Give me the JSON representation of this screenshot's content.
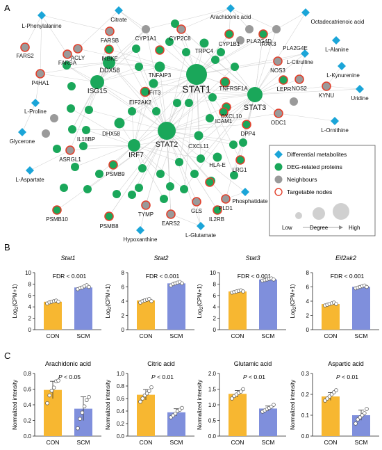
{
  "panels": {
    "a": {
      "letter": "A"
    },
    "b": {
      "letter": "B"
    },
    "c": {
      "letter": "C"
    }
  },
  "colors": {
    "metabolite": "#1ba5d8",
    "protein": "#1aa75a",
    "neighbour": "#9a9a9a",
    "target_ring": "#e2402c",
    "edge": "#d4d4d4",
    "bar_con": "#f7b731",
    "bar_scm": "#7f8fdc",
    "degree_bubble": "#d0d0d0"
  },
  "network": {
    "legend": {
      "items": [
        {
          "label": "Differential metabolites",
          "shape": "diamond"
        },
        {
          "label": "DEG-related proteins",
          "shape": "circle-green"
        },
        {
          "label": "Neighbours",
          "shape": "circle-gray"
        },
        {
          "label": "Targetable nodes",
          "shape": "ring"
        }
      ],
      "degree_low": "Low",
      "degree_label": "Degree",
      "degree_high": "High"
    },
    "nodes": [
      {
        "label": "STAT1",
        "type": "protein",
        "degree": 10
      },
      {
        "label": "STAT2",
        "type": "protein",
        "degree": 9
      },
      {
        "label": "STAT3",
        "type": "protein",
        "degree": 8
      },
      {
        "label": "ISG15",
        "type": "protein",
        "degree": 7
      },
      {
        "label": "IRF7",
        "type": "protein",
        "degree": 6
      },
      {
        "label": "DDX58",
        "type": "protein",
        "degree": 6
      },
      {
        "label": "DHX58",
        "type": "protein",
        "degree": 5
      },
      {
        "label": "TNFAIP3",
        "type": "protein",
        "degree": 5
      },
      {
        "label": "IFIT3",
        "type": "protein",
        "degree": 4
      },
      {
        "label": "TRPC4",
        "type": "protein",
        "degree": 4
      },
      {
        "label": "CXCL11",
        "type": "protein",
        "degree": 4
      },
      {
        "label": "HLA-E",
        "type": "protein",
        "degree": 4
      },
      {
        "label": "IL18BP",
        "type": "protein",
        "degree": 3
      },
      {
        "label": "TNFRSF1A",
        "type": "protein",
        "degree": 4,
        "target": true
      },
      {
        "label": "EIF2AK2",
        "type": "protein",
        "degree": 4,
        "target": true
      },
      {
        "label": "CXCL10",
        "type": "protein",
        "degree": 3,
        "target": true
      },
      {
        "label": "ICAM1",
        "type": "protein",
        "degree": 3,
        "target": true
      },
      {
        "label": "DPP4",
        "type": "protein",
        "degree": 3,
        "target": true
      },
      {
        "label": "IKBKE",
        "type": "protein",
        "degree": 3,
        "target": true
      },
      {
        "label": "CYP1B1",
        "type": "protein",
        "degree": 3,
        "target": true
      },
      {
        "label": "IRAK3",
        "type": "protein",
        "degree": 3,
        "target": true
      },
      {
        "label": "LEPR",
        "type": "protein",
        "degree": 3,
        "target": true
      },
      {
        "label": "LRG1",
        "type": "protein",
        "degree": 3,
        "target": true
      },
      {
        "label": "IL2RB",
        "type": "protein",
        "degree": 3,
        "target": true
      },
      {
        "label": "PSMB9",
        "type": "protein",
        "degree": 3,
        "target": true
      },
      {
        "label": "PSMB8",
        "type": "protein",
        "degree": 3,
        "target": true
      },
      {
        "label": "PSMB10",
        "type": "protein",
        "degree": 3,
        "target": true
      },
      {
        "label": "CYP1A1",
        "type": "neighbour",
        "degree": 2
      },
      {
        "label": "CYP2C8",
        "type": "neighbour",
        "degree": 2,
        "target": true
      },
      {
        "label": "PLA2G4D",
        "type": "neighbour",
        "degree": 2
      },
      {
        "label": "PLA2G4E",
        "type": "neighbour",
        "degree": 2
      },
      {
        "label": "FARSB",
        "type": "neighbour",
        "degree": 2,
        "target": true
      },
      {
        "label": "ACLY",
        "type": "neighbour",
        "degree": 2,
        "target": true
      },
      {
        "label": "FARS2",
        "type": "neighbour",
        "degree": 2,
        "target": true
      },
      {
        "label": "FARSA",
        "type": "neighbour",
        "degree": 2,
        "target": true
      },
      {
        "label": "P4HA1",
        "type": "neighbour",
        "degree": 2,
        "target": true
      },
      {
        "label": "NOS3",
        "type": "neighbour",
        "degree": 2,
        "target": true
      },
      {
        "label": "NOS2",
        "type": "neighbour",
        "degree": 2,
        "target": true
      },
      {
        "label": "KYNU",
        "type": "neighbour",
        "degree": 2,
        "target": true
      },
      {
        "label": "ODC1",
        "type": "neighbour",
        "degree": 2,
        "target": true
      },
      {
        "label": "ASRGL1",
        "type": "neighbour",
        "degree": 2,
        "target": true
      },
      {
        "label": "TYMP",
        "type": "neighbour",
        "degree": 2,
        "target": true
      },
      {
        "label": "GLS",
        "type": "neighbour",
        "degree": 2,
        "target": true
      },
      {
        "label": "EARS2",
        "type": "neighbour",
        "degree": 2,
        "target": true
      },
      {
        "label": "PLD1",
        "type": "neighbour",
        "degree": 2,
        "target": true
      },
      {
        "label": "L-Phenylalanine",
        "type": "metabolite"
      },
      {
        "label": "Citrate",
        "type": "metabolite"
      },
      {
        "label": "Arachidonic acid",
        "type": "metabolite"
      },
      {
        "label": "Octadecatrienoic acid",
        "type": "metabolite"
      },
      {
        "label": "L-Alanine",
        "type": "metabolite"
      },
      {
        "label": "L-Citrulline",
        "type": "metabolite"
      },
      {
        "label": "L-Kynurenine",
        "type": "metabolite"
      },
      {
        "label": "Uridine",
        "type": "metabolite"
      },
      {
        "label": "L-Ornithine",
        "type": "metabolite"
      },
      {
        "label": "L-Proline",
        "type": "metabolite"
      },
      {
        "label": "Glycerone",
        "type": "metabolite"
      },
      {
        "label": "L-Aspartate",
        "type": "metabolite"
      },
      {
        "label": "Phosphatidate",
        "type": "metabolite"
      },
      {
        "label": "Hypoxanthine",
        "type": "metabolite"
      },
      {
        "label": "L-Glutamate",
        "type": "metabolite"
      }
    ]
  },
  "chart_data": [
    {
      "panel": "B",
      "type": "bar",
      "title": "Stat1",
      "title_italic": true,
      "ylabel_base": "Log",
      "ylabel_sub": "2",
      "ylabel_rest": "(CPM+1)",
      "annotation": "FDR < 0.001",
      "ylim": [
        0,
        10
      ],
      "yticks": [
        0,
        2,
        4,
        6,
        8,
        10
      ],
      "categories": [
        "CON",
        "SCM"
      ],
      "values": [
        4.9,
        7.4
      ],
      "points": [
        [
          4.6,
          4.8,
          4.9,
          5.0,
          5.1,
          4.9
        ],
        [
          7.1,
          7.3,
          7.4,
          7.6,
          7.8,
          7.5
        ]
      ]
    },
    {
      "panel": "B",
      "type": "bar",
      "title": "Stat2",
      "title_italic": true,
      "ylabel_base": "Log",
      "ylabel_sub": "2",
      "ylabel_rest": "(CPM+1)",
      "annotation": "FDR < 0.001",
      "ylim": [
        0,
        8
      ],
      "yticks": [
        0,
        2,
        4,
        6,
        8
      ],
      "categories": [
        "CON",
        "SCM"
      ],
      "values": [
        4.1,
        6.5
      ],
      "points": [
        [
          3.8,
          4.0,
          4.1,
          4.2,
          4.3,
          4.0
        ],
        [
          6.2,
          6.4,
          6.5,
          6.6,
          6.7,
          6.5
        ]
      ]
    },
    {
      "panel": "B",
      "type": "bar",
      "title": "Stat3",
      "title_italic": true,
      "ylabel_base": "Log",
      "ylabel_sub": "2",
      "ylabel_rest": "(CPM+1)",
      "annotation": "FDR < 0.001",
      "ylim": [
        0,
        10
      ],
      "yticks": [
        0,
        2,
        4,
        6,
        8,
        10
      ],
      "categories": [
        "CON",
        "SCM"
      ],
      "values": [
        6.7,
        8.8
      ],
      "points": [
        [
          6.5,
          6.6,
          6.7,
          6.8,
          6.9,
          6.7
        ],
        [
          8.6,
          8.7,
          8.8,
          8.9,
          9.0,
          8.8
        ]
      ]
    },
    {
      "panel": "B",
      "type": "bar",
      "title": "Eif2ak2",
      "title_italic": true,
      "ylabel_base": "Log",
      "ylabel_sub": "2",
      "ylabel_rest": "(CPM+1)",
      "annotation": "FDR < 0.001",
      "ylim": [
        0,
        8
      ],
      "yticks": [
        0,
        2,
        4,
        6,
        8
      ],
      "categories": [
        "CON",
        "SCM"
      ],
      "values": [
        3.6,
        6.0
      ],
      "points": [
        [
          3.4,
          3.5,
          3.6,
          3.7,
          3.8,
          3.6
        ],
        [
          5.8,
          5.9,
          6.0,
          6.1,
          6.2,
          6.0
        ]
      ]
    },
    {
      "panel": "C",
      "type": "bar",
      "title": "Arachidonic acid",
      "title_italic": false,
      "ylabel": "Normalized intensity",
      "annotation_italic": "P",
      "annotation_rest": " < 0.05",
      "ylim": [
        0,
        0.8
      ],
      "yticks": [
        0.0,
        0.2,
        0.4,
        0.6,
        0.8
      ],
      "categories": [
        "CON",
        "SCM"
      ],
      "values": [
        0.59,
        0.35
      ],
      "points": [
        [
          0.42,
          0.52,
          0.58,
          0.62,
          0.7,
          0.71
        ],
        [
          0.1,
          0.22,
          0.3,
          0.38,
          0.46,
          0.5
        ]
      ]
    },
    {
      "panel": "C",
      "type": "bar",
      "title": "Citric acid",
      "title_italic": false,
      "ylabel": "Normalized intensity",
      "annotation_italic": "P",
      "annotation_rest": " < 0.01",
      "ylim": [
        0,
        1.0
      ],
      "yticks": [
        0.0,
        0.2,
        0.4,
        0.6,
        0.8,
        1.0
      ],
      "categories": [
        "CON",
        "SCM"
      ],
      "values": [
        0.66,
        0.38
      ],
      "points": [
        [
          0.55,
          0.6,
          0.65,
          0.68,
          0.72,
          0.78
        ],
        [
          0.3,
          0.33,
          0.36,
          0.4,
          0.42,
          0.45
        ]
      ]
    },
    {
      "panel": "C",
      "type": "bar",
      "title": "Glutamic acid",
      "title_italic": false,
      "ylabel": "Normalized intensity",
      "annotation_italic": "P",
      "annotation_rest": " < 0.01",
      "ylim": [
        0,
        2.0
      ],
      "yticks": [
        0.0,
        0.5,
        1.0,
        1.5,
        2.0
      ],
      "categories": [
        "CON",
        "SCM"
      ],
      "values": [
        1.35,
        0.88
      ],
      "points": [
        [
          1.2,
          1.28,
          1.33,
          1.38,
          1.42,
          1.5
        ],
        [
          0.78,
          0.82,
          0.86,
          0.9,
          0.94,
          1.0
        ]
      ]
    },
    {
      "panel": "C",
      "type": "bar",
      "title": "Aspartic acid",
      "title_italic": false,
      "ylabel": "Normalized intensity",
      "annotation_italic": "P",
      "annotation_rest": " < 0.01",
      "ylim": [
        0,
        0.3
      ],
      "yticks": [
        0.0,
        0.1,
        0.2,
        0.3
      ],
      "categories": [
        "CON",
        "SCM"
      ],
      "values": [
        0.19,
        0.1
      ],
      "points": [
        [
          0.17,
          0.18,
          0.19,
          0.2,
          0.21,
          0.22
        ],
        [
          0.06,
          0.08,
          0.09,
          0.1,
          0.11,
          0.13
        ]
      ]
    }
  ]
}
